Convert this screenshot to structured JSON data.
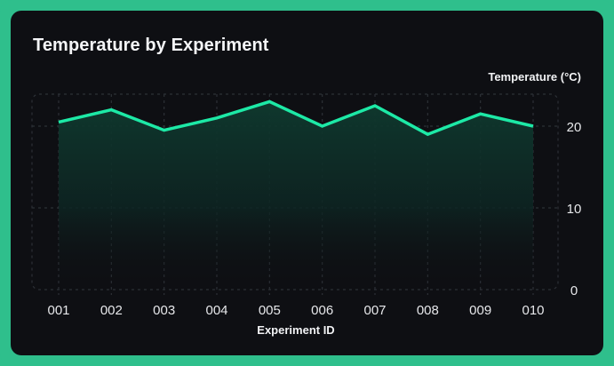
{
  "chart_title": "Temperature by Experiment",
  "colors": {
    "frame": "#2fbf8c",
    "card_bg": "#0e0f13",
    "line": "#1de9a6",
    "fill_top": "#0d2a24",
    "grid": "#2c3036",
    "text": "#e6e7ea"
  },
  "chart_data": {
    "type": "area",
    "title": "Temperature by Experiment",
    "xlabel": "Experiment ID",
    "ylabel": "Temperature (°C)",
    "categories": [
      "001",
      "002",
      "003",
      "004",
      "005",
      "006",
      "007",
      "008",
      "009",
      "010"
    ],
    "series": [
      {
        "name": "Temperature (°C)",
        "values": [
          20.5,
          22.0,
          19.5,
          21.0,
          23.0,
          20.0,
          22.5,
          19.0,
          21.5,
          20.0
        ]
      }
    ],
    "ylim": [
      0,
      24
    ],
    "yticks": [
      0,
      10,
      20
    ],
    "y_axis_position": "right",
    "grid": true,
    "legend": false
  }
}
